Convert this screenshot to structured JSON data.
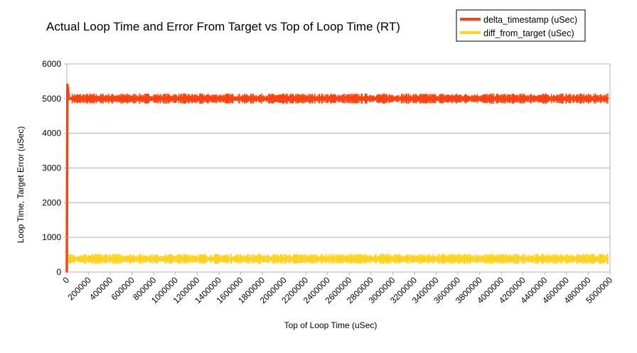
{
  "chart_data": {
    "type": "line",
    "title": "Actual Loop Time and Error From Target vs Top of Loop Time (RT)",
    "xlabel": "Top of Loop Time (uSec)",
    "ylabel": "Loop Time, Target Error (uSec)",
    "xlim": [
      0,
      5000000
    ],
    "ylim": [
      0,
      6000
    ],
    "grid": true,
    "legend_position": "top-right",
    "x_ticks": [
      "0",
      "200000",
      "400000",
      "600000",
      "800000",
      "1000000",
      "1200000",
      "1400000",
      "1600000",
      "1800000",
      "2000000",
      "2200000",
      "2400000",
      "2600000",
      "2800000",
      "3000000",
      "3200000",
      "3400000",
      "3600000",
      "3800000",
      "4000000",
      "4200000",
      "4400000",
      "4600000",
      "4800000",
      "5000000"
    ],
    "y_ticks": [
      "0",
      "1000",
      "2000",
      "3000",
      "4000",
      "5000",
      "6000"
    ],
    "series": [
      {
        "name": "delta_timestamp (uSec)",
        "color": "#ff420e",
        "x": [
          0,
          5000,
          20000,
          40000,
          100000,
          200000,
          300000,
          400000,
          500000,
          600000,
          700000,
          800000,
          900000,
          1000000,
          1100000,
          1200000,
          1300000,
          1400000,
          1500000,
          1600000,
          1700000,
          1800000,
          1900000,
          2000000,
          2100000,
          2200000,
          2300000,
          2400000,
          2500000,
          2600000,
          2700000,
          2800000,
          2900000,
          3000000,
          3100000,
          3200000,
          3300000,
          3400000,
          3500000,
          3600000,
          3700000,
          3800000,
          3900000,
          4000000,
          4100000,
          4200000,
          4300000,
          4400000,
          4500000,
          4600000,
          4700000,
          4800000,
          4900000,
          4980000
        ],
        "values": [
          0,
          5400,
          5000,
          5000,
          5000,
          5000,
          5000,
          5000,
          5000,
          5000,
          5000,
          5000,
          5000,
          5000,
          5000,
          5000,
          5000,
          5000,
          5000,
          5000,
          5000,
          5000,
          5000,
          5000,
          5000,
          5000,
          5000,
          5000,
          5000,
          5000,
          5000,
          5000,
          5000,
          5000,
          5000,
          5000,
          5000,
          5000,
          5000,
          5000,
          5000,
          5000,
          5000,
          5000,
          5000,
          5000,
          5000,
          5000,
          5000,
          5000,
          5000,
          5000,
          5000,
          5000
        ],
        "spread": 150
      },
      {
        "name": "diff_from_target (uSec)",
        "color": "#ffd320",
        "x": [
          20000,
          100000,
          200000,
          300000,
          400000,
          500000,
          600000,
          700000,
          800000,
          900000,
          1000000,
          1100000,
          1200000,
          1300000,
          1400000,
          1500000,
          1600000,
          1700000,
          1800000,
          1900000,
          2000000,
          2100000,
          2200000,
          2300000,
          2400000,
          2500000,
          2600000,
          2700000,
          2800000,
          2900000,
          3000000,
          3100000,
          3200000,
          3300000,
          3400000,
          3500000,
          3600000,
          3700000,
          3800000,
          3900000,
          4000000,
          4100000,
          4200000,
          4300000,
          4400000,
          4500000,
          4600000,
          4700000,
          4800000,
          4900000,
          4980000
        ],
        "values": [
          380,
          380,
          380,
          380,
          380,
          380,
          380,
          380,
          380,
          380,
          380,
          380,
          380,
          380,
          380,
          380,
          380,
          380,
          380,
          380,
          380,
          380,
          380,
          380,
          380,
          380,
          380,
          380,
          380,
          380,
          380,
          380,
          380,
          380,
          380,
          380,
          380,
          380,
          380,
          380,
          380,
          380,
          380,
          380,
          380,
          380,
          380,
          380,
          380,
          380,
          380
        ],
        "spread": 150
      }
    ]
  }
}
